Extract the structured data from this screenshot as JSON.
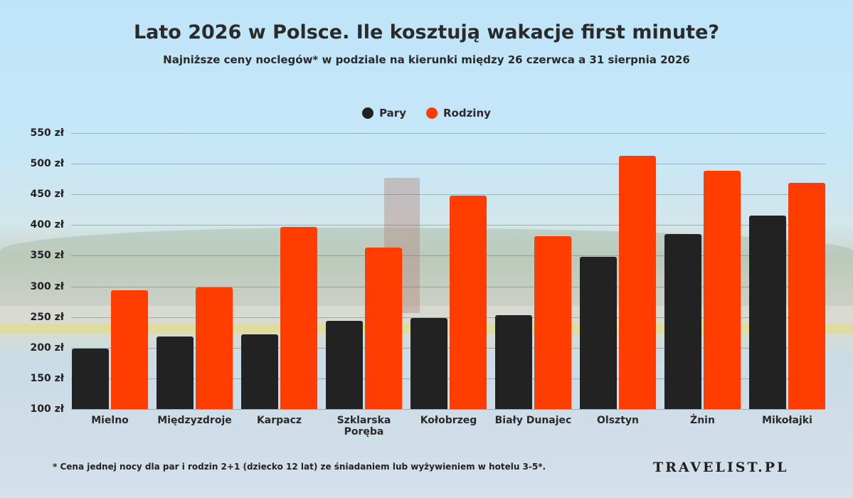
{
  "chart_data": {
    "type": "bar",
    "title": "Lato 2026 w Polsce. Ile kosztują wakacje first minute?",
    "subtitle": "Najniższe ceny noclegów* w podziale na kierunki między 26 czerwca a 31 sierpnia 2026",
    "xlabel": "",
    "ylabel": "",
    "ylim": [
      100,
      550
    ],
    "yticks": [
      "550 zł",
      "500 zł",
      "450 zł",
      "400 zł",
      "350 zł",
      "300 zł",
      "250 zł",
      "200 zł",
      "150 zł",
      "100 zł"
    ],
    "ytick_values": [
      550,
      500,
      450,
      400,
      350,
      300,
      250,
      200,
      150,
      100
    ],
    "grid": true,
    "legend_position": "top-center",
    "categories": [
      "Mielno",
      "Międzyzdroje",
      "Karpacz",
      "Szklarska Poręba",
      "Kołobrzeg",
      "Biały Dunajec",
      "Olsztyn",
      "Żnin",
      "Mikołajki"
    ],
    "series": [
      {
        "name": "Pary",
        "color": "#222222",
        "values": [
          199,
          218,
          222,
          244,
          248,
          253,
          348,
          385,
          416
        ]
      },
      {
        "name": "Rodziny",
        "color": "#ff3d00",
        "values": [
          294,
          298,
          397,
          363,
          448,
          382,
          513,
          489,
          469
        ]
      }
    ]
  },
  "footnote": "* Cena jednej nocy dla par i rodzin 2+1 (dziecko 12 lat) ze śniadaniem lub wyżywieniem w hotelu 3-5*.",
  "brand": "TRAVELIST.PL",
  "colors": {
    "pary": "#222222",
    "rodziny": "#ff3d00",
    "text": "#2a2a2a"
  }
}
